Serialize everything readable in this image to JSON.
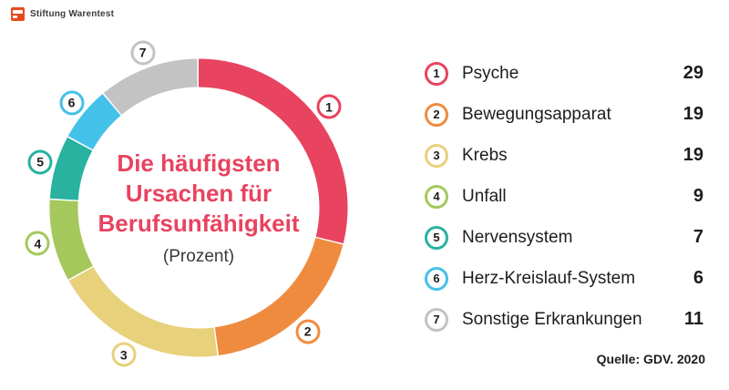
{
  "logo": {
    "brand": "Stiftung Warentest"
  },
  "chart_data": {
    "type": "pie",
    "donut": true,
    "title": "Die häufigsten Ursachen für Berufsunfähigkeit",
    "subtitle": "(Prozent)",
    "unit": "Prozent",
    "start_angle_deg": -90,
    "direction": "clockwise",
    "legend_position": "right",
    "segments": [
      {
        "rank": "1",
        "label": "Psyche",
        "value": 29,
        "color": "#e8435f"
      },
      {
        "rank": "2",
        "label": "Bewegungsapparat",
        "value": 19,
        "color": "#ef8b3f"
      },
      {
        "rank": "3",
        "label": "Krebs",
        "value": 19,
        "color": "#e8d17b"
      },
      {
        "rank": "4",
        "label": "Unfall",
        "value": 9,
        "color": "#a5c85c"
      },
      {
        "rank": "5",
        "label": "Nervensystem",
        "value": 7,
        "color": "#29b2a0"
      },
      {
        "rank": "6",
        "label": "Herz-Kreislauf-System",
        "value": 6,
        "color": "#44c1e8"
      },
      {
        "rank": "7",
        "label": "Sonstige Erkrankungen",
        "value": 11,
        "color": "#c3c3c4"
      }
    ]
  },
  "center": {
    "title_lines": [
      "Die häufigsten",
      "Ursachen für",
      "Berufsunfähigkeit"
    ],
    "subtitle": "(Prozent)",
    "title_color": "#e8435f"
  },
  "source": "Quelle: GDV. 2020"
}
